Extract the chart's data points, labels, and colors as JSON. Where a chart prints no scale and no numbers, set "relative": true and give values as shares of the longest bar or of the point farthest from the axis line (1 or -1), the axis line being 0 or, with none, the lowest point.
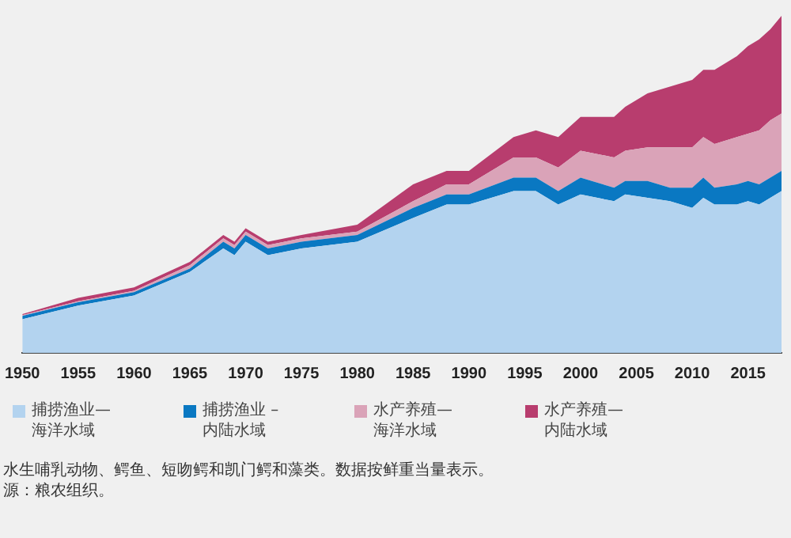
{
  "chart_data": {
    "type": "area",
    "stacked": true,
    "relative": true,
    "x": [
      1950,
      1955,
      1960,
      1965,
      1968,
      1969,
      1970,
      1972,
      1975,
      1980,
      1985,
      1988,
      1990,
      1994,
      1996,
      1998,
      2000,
      2003,
      2004,
      2006,
      2008,
      2010,
      2011,
      2012,
      2014,
      2015,
      2016,
      2017,
      2018
    ],
    "series": [
      {
        "name": "捕捞渔业—海洋水域",
        "color": "#b3d3ef",
        "values": [
          0.1,
          0.14,
          0.17,
          0.24,
          0.31,
          0.29,
          0.33,
          0.29,
          0.31,
          0.33,
          0.4,
          0.44,
          0.44,
          0.48,
          0.48,
          0.44,
          0.47,
          0.45,
          0.47,
          0.46,
          0.45,
          0.43,
          0.46,
          0.44,
          0.44,
          0.45,
          0.44,
          0.46,
          0.48
        ]
      },
      {
        "name": "捕捞渔业 –内陆水域",
        "color": "#0a78c2",
        "values": [
          0.01,
          0.01,
          0.01,
          0.01,
          0.02,
          0.02,
          0.02,
          0.02,
          0.02,
          0.02,
          0.03,
          0.03,
          0.03,
          0.04,
          0.04,
          0.04,
          0.05,
          0.04,
          0.04,
          0.05,
          0.04,
          0.06,
          0.06,
          0.05,
          0.06,
          0.06,
          0.06,
          0.06,
          0.06
        ]
      },
      {
        "name": "水产养殖—海洋水域",
        "color": "#daa3b8",
        "values": [
          0.002,
          0.003,
          0.004,
          0.01,
          0.01,
          0.01,
          0.01,
          0.01,
          0.01,
          0.01,
          0.02,
          0.03,
          0.03,
          0.06,
          0.06,
          0.07,
          0.08,
          0.09,
          0.09,
          0.1,
          0.12,
          0.12,
          0.12,
          0.13,
          0.14,
          0.14,
          0.16,
          0.17,
          0.17
        ]
      },
      {
        "name": "水产养殖—内陆水域",
        "color": "#b83d6e",
        "values": [
          0.003,
          0.01,
          0.01,
          0.01,
          0.01,
          0.01,
          0.01,
          0.01,
          0.01,
          0.02,
          0.05,
          0.04,
          0.04,
          0.06,
          0.08,
          0.09,
          0.1,
          0.12,
          0.13,
          0.16,
          0.18,
          0.2,
          0.2,
          0.22,
          0.24,
          0.26,
          0.27,
          0.27,
          0.29
        ]
      }
    ],
    "xlim": [
      1950,
      2018
    ],
    "xticks": [
      1950,
      1955,
      1960,
      1965,
      1970,
      1975,
      1980,
      1985,
      1990,
      1995,
      2000,
      2005,
      2010,
      2015
    ],
    "legend": "bottom",
    "tick_labels": "x",
    "annotations": [
      "水生哺乳动物、鳄鱼、短吻鳄和凯门鳄和藻类。数据按鲜重当量表示。",
      "源：粮农组织。"
    ]
  }
}
